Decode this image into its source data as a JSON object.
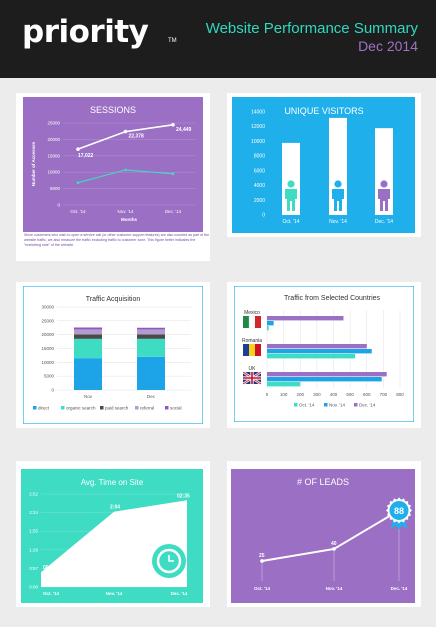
{
  "header": {
    "logo": "priority",
    "logo_tm": "TM",
    "title": "Website Performance Summary",
    "date": "Dec 2014"
  },
  "colors": {
    "purple": "#9b6fc4",
    "blue": "#1fb0ec",
    "teal": "#3fdcc4",
    "header_bg": "#1d1d1d"
  },
  "chart_data": [
    {
      "type": "line",
      "title": "SESSIONS",
      "xlabel": "Months",
      "ylabel": "Number of Accesses",
      "categories": [
        "Oct. '14",
        "Nov. '14",
        "Dec. '14"
      ],
      "series": [
        {
          "values": [
            17022,
            22378,
            24449
          ],
          "labels": [
            "17,022",
            "22,378",
            "24,449"
          ],
          "color": "#ffffff"
        },
        {
          "values": [
            6800,
            10700,
            9500
          ],
          "color": "#3fdcc4"
        }
      ],
      "ylim": [
        0,
        25000
      ],
      "yticks": [
        "0",
        "5000",
        "10000",
        "15000",
        "20000",
        "25000"
      ],
      "grid": true,
      "note": "Since customers who wish to open a service call (or other customer support features) are also counted as part of the website traffic, we also measure the traffic excluding traffic to customer zone. This figure better indicates the \"marketing side\" of the website."
    },
    {
      "type": "bar",
      "title": "UNIQUE VISITORS",
      "categories": [
        "Oct. '14",
        "Nov. '14",
        "Dec. '14"
      ],
      "values": [
        9800,
        13200,
        11800
      ],
      "ylim": [
        0,
        14000
      ],
      "yticks": [
        "0",
        "2000",
        "4000",
        "6000",
        "8000",
        "10000",
        "12000",
        "14000"
      ],
      "icon_colors": [
        "#3fdcc4",
        "#1fb0ec",
        "#9b6fc4"
      ]
    },
    {
      "type": "bar",
      "title": "Traffic Acquisition",
      "categories": [
        "Nov",
        "Dec"
      ],
      "series": [
        {
          "name": "direct",
          "values": [
            11500,
            12000
          ],
          "color": "#1ca3e8"
        },
        {
          "name": "organic search",
          "values": [
            7000,
            6500
          ],
          "color": "#3fdcc4"
        },
        {
          "name": "paid search",
          "values": [
            1600,
            1600
          ],
          "color": "#4a4a4a"
        },
        {
          "name": "referral",
          "values": [
            1800,
            1800
          ],
          "color": "#b39bd0"
        },
        {
          "name": "social",
          "values": [
            700,
            600
          ],
          "color": "#8a5cc0"
        }
      ],
      "ylim": [
        0,
        30000
      ],
      "yticks": [
        "0",
        "5000",
        "10000",
        "15000",
        "20000",
        "25000",
        "30000"
      ]
    },
    {
      "type": "bar",
      "title": "Traffic from Selected Countries",
      "categories": [
        "Mexico",
        "Romania",
        "UK"
      ],
      "series": [
        {
          "name": "Oct. '14",
          "values": [
            10,
            530,
            200
          ],
          "color": "#3fdcc4"
        },
        {
          "name": "Nov. '14",
          "values": [
            40,
            630,
            690
          ],
          "color": "#1ca3e8"
        },
        {
          "name": "Dec. '14",
          "values": [
            460,
            600,
            720
          ],
          "color": "#9b6fc4"
        }
      ],
      "xlim": [
        0,
        800
      ],
      "xticks": [
        "0",
        "100",
        "200",
        "300",
        "400",
        "500",
        "600",
        "700",
        "800"
      ]
    },
    {
      "type": "area",
      "title": "Avg. Time on Site",
      "categories": [
        "Oct. '14",
        "Nov. '14",
        "Dec. '14"
      ],
      "values": [
        0.4,
        2.04,
        2.35
      ],
      "labels": [
        "00:40",
        "2:04",
        "02:35"
      ],
      "ylim": [
        0,
        2.52
      ],
      "yticks": [
        "0:00",
        "0:57",
        "1:26",
        "1:55",
        "2:24",
        "2:52"
      ]
    },
    {
      "type": "line",
      "title": "# OF LEADS",
      "categories": [
        "Oct. '14",
        "Nov. '14",
        "Dec. '14"
      ],
      "values": [
        25,
        40,
        88
      ],
      "labels": [
        "25",
        "40",
        "88"
      ]
    }
  ]
}
